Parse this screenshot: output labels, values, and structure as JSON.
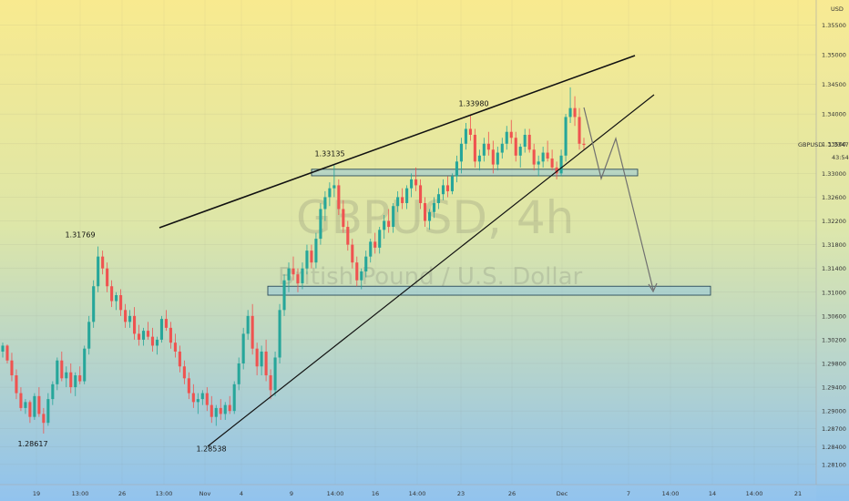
{
  "chart_data": {
    "type": "candlestick",
    "symbol_watermark": "GBPUSD, 4h",
    "name_watermark": "British Pound / U.S. Dollar",
    "currency": "USD",
    "price_tag": {
      "label": "GBPUSD",
      "value": "1.33477",
      "countdown": "43:54"
    },
    "y_ticks": [
      "1.35500",
      "1.35000",
      "1.34500",
      "1.34000",
      "1.33500",
      "1.33000",
      "1.32600",
      "1.32200",
      "1.31800",
      "1.31400",
      "1.31000",
      "1.30600",
      "1.30200",
      "1.29800",
      "1.29400",
      "1.29000",
      "1.28700",
      "1.28400",
      "1.28100"
    ],
    "x_ticks": [
      "19",
      "13:00",
      "26",
      "13:00",
      "Nov",
      "4",
      "9",
      "14:00",
      "16",
      "14:00",
      "23",
      "26",
      "Dec",
      "7",
      "14:00",
      "14",
      "14:00",
      "21"
    ],
    "ylim": [
      1.2776,
      1.3592
    ],
    "annotations": [
      {
        "label": "1.31769",
        "price": 1.31769
      },
      {
        "label": "1.28617",
        "price": 1.28617
      },
      {
        "label": "1.28538",
        "price": 1.28538
      },
      {
        "label": "1.33135",
        "price": 1.33135
      },
      {
        "label": "1.33980",
        "price": 1.3398
      }
    ],
    "zones": [
      {
        "name": "resistance-zone",
        "from": 1.3296,
        "to": 1.3307
      },
      {
        "name": "target-zone",
        "from": 1.3095,
        "to": 1.311
      }
    ],
    "candles": [
      [
        1.3,
        1.3015,
        1.299,
        1.301
      ],
      [
        1.301,
        1.3012,
        1.298,
        1.2985
      ],
      [
        1.2985,
        1.2998,
        1.295,
        1.296
      ],
      [
        1.296,
        1.297,
        1.292,
        1.293
      ],
      [
        1.293,
        1.294,
        1.29,
        1.2905
      ],
      [
        1.2905,
        1.292,
        1.2895,
        1.2915
      ],
      [
        1.2915,
        1.2918,
        1.288,
        1.289
      ],
      [
        1.289,
        1.293,
        1.2885,
        1.2925
      ],
      [
        1.2925,
        1.294,
        1.289,
        1.2895
      ],
      [
        1.2895,
        1.2905,
        1.2862,
        1.288
      ],
      [
        1.288,
        1.293,
        1.2875,
        1.292
      ],
      [
        1.292,
        1.295,
        1.291,
        1.2945
      ],
      [
        1.2945,
        1.299,
        1.2935,
        1.2985
      ],
      [
        1.2985,
        1.3,
        1.295,
        1.2955
      ],
      [
        1.2955,
        1.2975,
        1.294,
        1.2965
      ],
      [
        1.2965,
        1.298,
        1.293,
        1.294
      ],
      [
        1.294,
        1.2965,
        1.2925,
        1.296
      ],
      [
        1.296,
        1.2975,
        1.2945,
        1.295
      ],
      [
        1.295,
        1.301,
        1.2945,
        1.3005
      ],
      [
        1.3005,
        1.306,
        1.2995,
        1.305
      ],
      [
        1.305,
        1.312,
        1.304,
        1.311
      ],
      [
        1.311,
        1.3177,
        1.31,
        1.316
      ],
      [
        1.316,
        1.317,
        1.313,
        1.314
      ],
      [
        1.314,
        1.315,
        1.31,
        1.311
      ],
      [
        1.311,
        1.312,
        1.3075,
        1.3085
      ],
      [
        1.3085,
        1.31,
        1.307,
        1.3095
      ],
      [
        1.3095,
        1.3105,
        1.306,
        1.307
      ],
      [
        1.307,
        1.308,
        1.304,
        1.305
      ],
      [
        1.305,
        1.307,
        1.304,
        1.306
      ],
      [
        1.306,
        1.3075,
        1.302,
        1.303
      ],
      [
        1.303,
        1.3045,
        1.301,
        1.302
      ],
      [
        1.302,
        1.304,
        1.301,
        1.3035
      ],
      [
        1.3035,
        1.305,
        1.302,
        1.3025
      ],
      [
        1.3025,
        1.304,
        1.3,
        1.301
      ],
      [
        1.301,
        1.3025,
        1.2995,
        1.302
      ],
      [
        1.302,
        1.306,
        1.3015,
        1.3055
      ],
      [
        1.3055,
        1.307,
        1.3035,
        1.304
      ],
      [
        1.304,
        1.305,
        1.3005,
        1.3015
      ],
      [
        1.3015,
        1.303,
        1.299,
        1.3
      ],
      [
        1.3,
        1.301,
        1.2965,
        1.2975
      ],
      [
        1.2975,
        1.2985,
        1.2945,
        1.2955
      ],
      [
        1.2955,
        1.2965,
        1.292,
        1.293
      ],
      [
        1.293,
        1.2945,
        1.2905,
        1.2915
      ],
      [
        1.2915,
        1.293,
        1.2895,
        1.292
      ],
      [
        1.292,
        1.2935,
        1.291,
        1.293
      ],
      [
        1.293,
        1.294,
        1.29,
        1.291
      ],
      [
        1.291,
        1.2925,
        1.288,
        1.289
      ],
      [
        1.289,
        1.291,
        1.2875,
        1.2905
      ],
      [
        1.2905,
        1.292,
        1.2885,
        1.2895
      ],
      [
        1.2895,
        1.2915,
        1.2885,
        1.291
      ],
      [
        1.291,
        1.2925,
        1.2895,
        1.29
      ],
      [
        1.29,
        1.295,
        1.2895,
        1.2945
      ],
      [
        1.2945,
        1.299,
        1.2935,
        1.298
      ],
      [
        1.298,
        1.304,
        1.297,
        1.303
      ],
      [
        1.303,
        1.307,
        1.302,
        1.306
      ],
      [
        1.306,
        1.308,
        1.2995,
        1.3005
      ],
      [
        1.3005,
        1.3015,
        1.296,
        1.2975
      ],
      [
        1.2975,
        1.301,
        1.296,
        1.3
      ],
      [
        1.3,
        1.302,
        1.295,
        1.296
      ],
      [
        1.296,
        1.297,
        1.292,
        1.2935
      ],
      [
        1.2935,
        1.3,
        1.2925,
        1.299
      ],
      [
        1.299,
        1.308,
        1.298,
        1.307
      ],
      [
        1.307,
        1.313,
        1.306,
        1.312
      ],
      [
        1.312,
        1.315,
        1.31,
        1.314
      ],
      [
        1.314,
        1.316,
        1.312,
        1.313
      ],
      [
        1.313,
        1.314,
        1.31,
        1.3115
      ],
      [
        1.3115,
        1.315,
        1.3105,
        1.314
      ],
      [
        1.314,
        1.318,
        1.313,
        1.317
      ],
      [
        1.317,
        1.318,
        1.314,
        1.315
      ],
      [
        1.315,
        1.32,
        1.314,
        1.319
      ],
      [
        1.319,
        1.325,
        1.318,
        1.324
      ],
      [
        1.324,
        1.327,
        1.322,
        1.326
      ],
      [
        1.326,
        1.3285,
        1.3245,
        1.3275
      ],
      [
        1.3275,
        1.3314,
        1.326,
        1.328
      ],
      [
        1.328,
        1.329,
        1.323,
        1.324
      ],
      [
        1.324,
        1.3255,
        1.32,
        1.321
      ],
      [
        1.321,
        1.322,
        1.317,
        1.318
      ],
      [
        1.318,
        1.319,
        1.314,
        1.315
      ],
      [
        1.315,
        1.316,
        1.311,
        1.312
      ],
      [
        1.312,
        1.314,
        1.3105,
        1.3135
      ],
      [
        1.3135,
        1.317,
        1.3125,
        1.316
      ],
      [
        1.316,
        1.319,
        1.315,
        1.3185
      ],
      [
        1.3185,
        1.32,
        1.3165,
        1.3175
      ],
      [
        1.3175,
        1.321,
        1.3165,
        1.3205
      ],
      [
        1.3205,
        1.323,
        1.319,
        1.322
      ],
      [
        1.322,
        1.324,
        1.32,
        1.321
      ],
      [
        1.321,
        1.325,
        1.32,
        1.3245
      ],
      [
        1.3245,
        1.327,
        1.3235,
        1.326
      ],
      [
        1.326,
        1.3275,
        1.324,
        1.325
      ],
      [
        1.325,
        1.328,
        1.324,
        1.3275
      ],
      [
        1.3275,
        1.33,
        1.326,
        1.329
      ],
      [
        1.329,
        1.331,
        1.327,
        1.328
      ],
      [
        1.328,
        1.329,
        1.324,
        1.325
      ],
      [
        1.325,
        1.326,
        1.321,
        1.322
      ],
      [
        1.322,
        1.324,
        1.3205,
        1.3235
      ],
      [
        1.3235,
        1.326,
        1.3225,
        1.325
      ],
      [
        1.325,
        1.3275,
        1.324,
        1.3265
      ],
      [
        1.3265,
        1.329,
        1.3255,
        1.328
      ],
      [
        1.328,
        1.3295,
        1.326,
        1.327
      ],
      [
        1.327,
        1.33,
        1.3265,
        1.3295
      ],
      [
        1.3295,
        1.333,
        1.3285,
        1.332
      ],
      [
        1.332,
        1.336,
        1.33,
        1.335
      ],
      [
        1.335,
        1.3385,
        1.334,
        1.3375
      ],
      [
        1.3375,
        1.3398,
        1.3355,
        1.3365
      ],
      [
        1.3365,
        1.3375,
        1.331,
        1.332
      ],
      [
        1.332,
        1.334,
        1.3305,
        1.333
      ],
      [
        1.333,
        1.336,
        1.332,
        1.335
      ],
      [
        1.335,
        1.337,
        1.333,
        1.334
      ],
      [
        1.334,
        1.3355,
        1.33,
        1.3315
      ],
      [
        1.3315,
        1.3345,
        1.3305,
        1.3335
      ],
      [
        1.3335,
        1.336,
        1.3325,
        1.335
      ],
      [
        1.335,
        1.338,
        1.334,
        1.337
      ],
      [
        1.337,
        1.339,
        1.335,
        1.336
      ],
      [
        1.336,
        1.337,
        1.332,
        1.333
      ],
      [
        1.333,
        1.335,
        1.331,
        1.3345
      ],
      [
        1.3345,
        1.3375,
        1.3335,
        1.3365
      ],
      [
        1.3365,
        1.3375,
        1.3335,
        1.334
      ],
      [
        1.334,
        1.335,
        1.3305,
        1.3315
      ],
      [
        1.3315,
        1.333,
        1.3295,
        1.332
      ],
      [
        1.332,
        1.3345,
        1.331,
        1.3335
      ],
      [
        1.3335,
        1.3355,
        1.332,
        1.3325
      ],
      [
        1.3325,
        1.334,
        1.3305,
        1.331
      ],
      [
        1.331,
        1.332,
        1.329,
        1.33
      ],
      [
        1.33,
        1.334,
        1.3295,
        1.333
      ],
      [
        1.333,
        1.34,
        1.332,
        1.3395
      ],
      [
        1.3395,
        1.3445,
        1.3385,
        1.341
      ],
      [
        1.341,
        1.343,
        1.338,
        1.3395
      ],
      [
        1.3395,
        1.341,
        1.334,
        1.335
      ],
      [
        1.335,
        1.336,
        1.334,
        1.3348
      ]
    ]
  }
}
